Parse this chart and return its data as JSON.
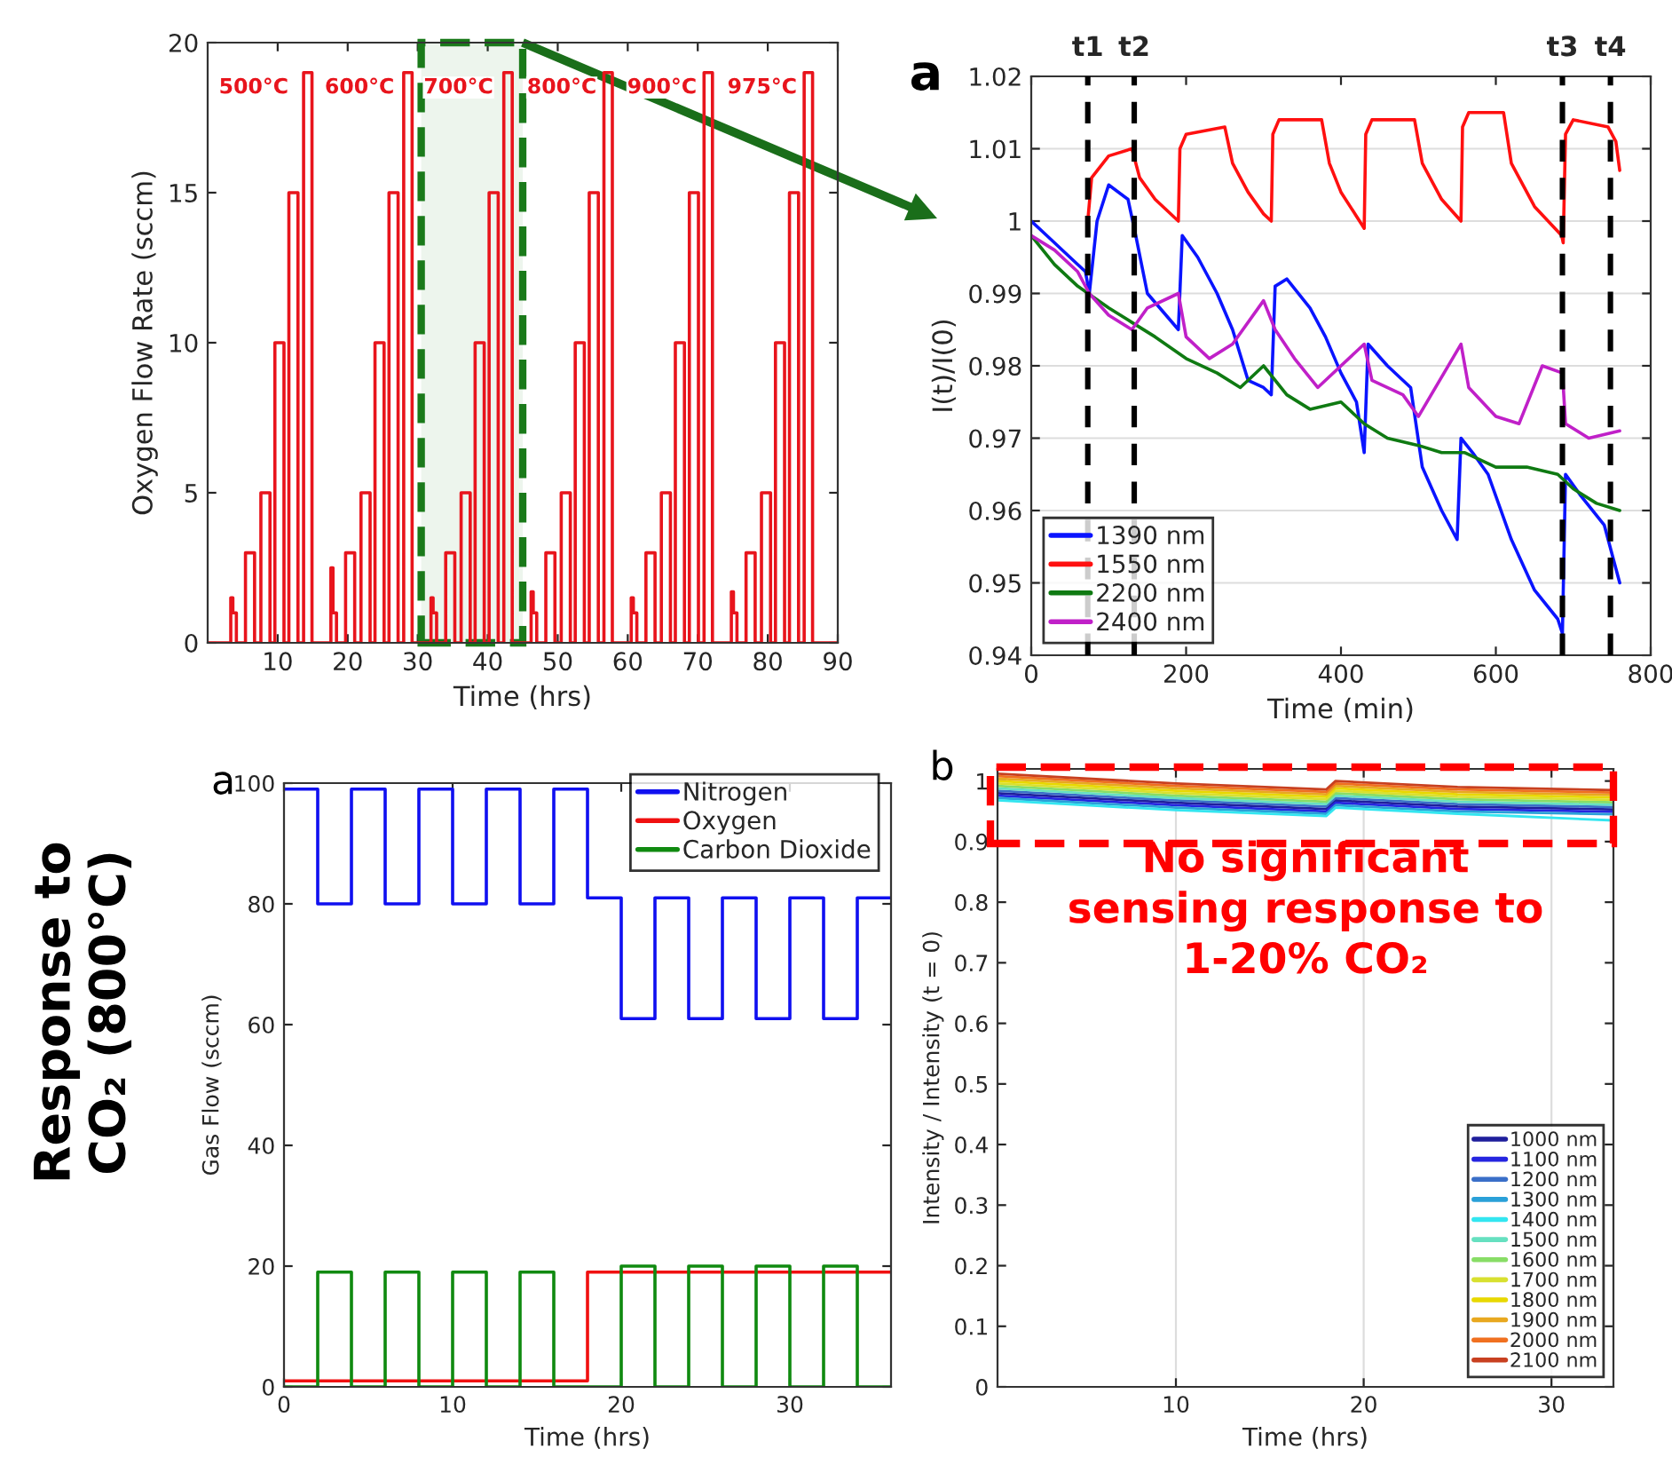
{
  "chart_data": [
    {
      "type": "step",
      "xlabel": "Time (hrs)",
      "ylabel": "Oxygen Flow Rate (sccm)",
      "xlim": [
        0,
        90
      ],
      "ylim": [
        0,
        20
      ],
      "xticks": [
        10,
        20,
        30,
        40,
        50,
        60,
        70,
        80,
        90
      ],
      "yticks": [
        0,
        5,
        10,
        15,
        20
      ],
      "grid": false,
      "legend": false,
      "series": [
        {
          "color": "#e8141c",
          "x": [
            0,
            3.3,
            3.6,
            4.1,
            5.4,
            6.7,
            7.6,
            8.9,
            9.6,
            10.9,
            11.6,
            12.9,
            13.7,
            14.9,
            17.6,
            17.9,
            18.4,
            19.7,
            21.0,
            21.9,
            23.2,
            23.9,
            25.2,
            25.9,
            27.2,
            28.0,
            29.2,
            31.9,
            32.2,
            32.7,
            34.0,
            35.3,
            36.2,
            37.5,
            38.2,
            39.5,
            40.2,
            41.5,
            42.3,
            43.5,
            46.2,
            46.5,
            47.0,
            48.3,
            49.6,
            50.5,
            51.8,
            52.5,
            53.8,
            54.5,
            55.8,
            56.6,
            57.8,
            60.5,
            60.8,
            61.3,
            62.6,
            63.9,
            64.8,
            66.1,
            66.8,
            68.1,
            68.8,
            70.1,
            70.9,
            72.1,
            74.8,
            75.1,
            75.6,
            76.9,
            78.2,
            79.1,
            80.4,
            81.1,
            82.4,
            83.1,
            84.4,
            85.2,
            86.4,
            90
          ],
          "values": [
            0,
            1.5,
            1,
            0,
            3,
            0,
            5,
            0,
            10,
            0,
            15,
            0,
            19,
            0,
            2.5,
            1,
            0,
            3,
            0,
            5,
            0,
            10,
            0,
            15,
            0,
            19,
            0,
            1.5,
            1,
            0,
            3,
            0,
            5,
            0,
            10,
            0,
            15,
            0,
            19,
            0,
            1.7,
            1,
            0,
            3,
            0,
            5,
            0,
            10,
            0,
            15,
            0,
            19,
            0,
            1.5,
            1,
            0,
            3,
            0,
            5,
            0,
            10,
            0,
            15,
            0,
            19,
            0,
            1.7,
            1,
            0,
            3,
            0,
            5,
            0,
            10,
            0,
            15,
            0,
            19,
            0,
            0
          ]
        }
      ],
      "bands": [
        {
          "axis": "x",
          "from": 30.5,
          "to": 45,
          "color": "#1a7a1a"
        }
      ],
      "annotations": [
        "500°C",
        "600°C",
        "700°C",
        "800°C",
        "900°C",
        "975°C"
      ]
    },
    {
      "type": "line",
      "xlabel": "Time (min)",
      "ylabel": "I(t)/I(0)",
      "xlim": [
        0,
        800
      ],
      "ylim": [
        0.94,
        1.02
      ],
      "xticks": [
        0,
        200,
        400,
        600,
        800
      ],
      "yticks": [
        0.94,
        0.95,
        0.96,
        0.97,
        0.98,
        0.99,
        1,
        1.01,
        1.02
      ],
      "grid": "y",
      "legend": "bottom left",
      "series": [
        {
          "name": "1390 nm",
          "color": "#0a14ff",
          "x": [
            0,
            20,
            50,
            70,
            75,
            85,
            100,
            125,
            135,
            150,
            190,
            195,
            215,
            240,
            260,
            280,
            300,
            310,
            315,
            330,
            360,
            380,
            400,
            420,
            430,
            435,
            460,
            490,
            505,
            530,
            550,
            555,
            570,
            590,
            620,
            650,
            680,
            686,
            690,
            710,
            740,
            755,
            760
          ],
          "values": [
            1.0,
            0.998,
            0.995,
            0.993,
            0.99,
            1.0,
            1.005,
            1.003,
            0.998,
            0.99,
            0.985,
            0.998,
            0.995,
            0.99,
            0.985,
            0.978,
            0.977,
            0.976,
            0.991,
            0.992,
            0.988,
            0.984,
            0.979,
            0.975,
            0.968,
            0.983,
            0.98,
            0.977,
            0.966,
            0.96,
            0.956,
            0.97,
            0.968,
            0.965,
            0.956,
            0.949,
            0.945,
            0.943,
            0.965,
            0.962,
            0.958,
            0.952,
            0.95
          ]
        },
        {
          "name": "1550 nm",
          "color": "#ff1010",
          "x": [
            73,
            78,
            100,
            130,
            140,
            160,
            190,
            192,
            200,
            250,
            260,
            280,
            300,
            310,
            312,
            320,
            375,
            385,
            400,
            430,
            432,
            440,
            495,
            505,
            530,
            555,
            557,
            565,
            610,
            620,
            650,
            685,
            687,
            690,
            700,
            745,
            755,
            760
          ],
          "values": [
            1.0,
            1.006,
            1.009,
            1.01,
            1.006,
            1.003,
            1.0,
            1.01,
            1.012,
            1.013,
            1.008,
            1.004,
            1.001,
            1.0,
            1.012,
            1.014,
            1.014,
            1.008,
            1.004,
            0.999,
            1.012,
            1.014,
            1.014,
            1.008,
            1.003,
            1.0,
            1.013,
            1.015,
            1.015,
            1.008,
            1.002,
            0.998,
            0.997,
            1.012,
            1.014,
            1.013,
            1.011,
            1.007
          ]
        },
        {
          "name": "2200 nm",
          "color": "#0f7a12",
          "x": [
            0,
            30,
            60,
            100,
            130,
            160,
            200,
            240,
            270,
            300,
            330,
            360,
            400,
            430,
            460,
            500,
            530,
            560,
            600,
            640,
            680,
            700,
            730,
            760
          ],
          "values": [
            0.998,
            0.994,
            0.991,
            0.988,
            0.986,
            0.984,
            0.981,
            0.979,
            0.977,
            0.98,
            0.976,
            0.974,
            0.975,
            0.972,
            0.97,
            0.969,
            0.968,
            0.968,
            0.966,
            0.966,
            0.965,
            0.963,
            0.961,
            0.96
          ]
        },
        {
          "name": "2400 nm",
          "color": "#c020c8",
          "x": [
            0,
            30,
            60,
            75,
            100,
            130,
            150,
            190,
            200,
            230,
            260,
            300,
            315,
            340,
            370,
            430,
            440,
            480,
            500,
            555,
            565,
            600,
            630,
            660,
            686,
            690,
            720,
            760
          ],
          "values": [
            0.998,
            0.996,
            0.993,
            0.99,
            0.987,
            0.985,
            0.988,
            0.99,
            0.984,
            0.981,
            0.983,
            0.989,
            0.985,
            0.981,
            0.977,
            0.983,
            0.978,
            0.976,
            0.973,
            0.983,
            0.977,
            0.973,
            0.972,
            0.98,
            0.979,
            0.972,
            0.97,
            0.971
          ]
        }
      ],
      "ref_lines": [
        {
          "axis": "x",
          "value": 73,
          "label": "t1",
          "color": "#000000",
          "line_style": "dashed"
        },
        {
          "axis": "x",
          "value": 133,
          "label": "t2",
          "color": "#000000",
          "line_style": "dashed"
        },
        {
          "axis": "x",
          "value": 686,
          "label": "t3",
          "color": "#000000",
          "line_style": "dashed"
        },
        {
          "axis": "x",
          "value": 748,
          "label": "t4",
          "color": "#000000",
          "line_style": "dashed"
        }
      ],
      "annotations": [
        "a"
      ]
    },
    {
      "type": "step",
      "xlabel": "Time (hrs)",
      "ylabel": "Gas Flow (sccm)",
      "xlim": [
        0,
        36
      ],
      "ylim": [
        0,
        100
      ],
      "xticks": [
        0,
        10,
        20,
        30
      ],
      "yticks": [
        0,
        20,
        40,
        60,
        80,
        100
      ],
      "grid": false,
      "legend": "top right",
      "series": [
        {
          "name": "Nitrogen",
          "color": "#1010f0",
          "x": [
            0,
            2,
            4,
            6,
            8,
            10,
            12,
            14,
            16,
            18,
            20,
            22,
            24,
            26,
            28,
            30,
            32,
            34,
            36
          ],
          "values": [
            99,
            80,
            99,
            80,
            99,
            80,
            99,
            80,
            99,
            81,
            61,
            81,
            61,
            81,
            61,
            81,
            61,
            81,
            81
          ]
        },
        {
          "name": "Oxygen",
          "color": "#f01010",
          "x": [
            0,
            18,
            36
          ],
          "values": [
            1,
            19,
            19
          ]
        },
        {
          "name": "Carbon Dioxide",
          "color": "#108a10",
          "x": [
            0,
            2,
            4,
            6,
            8,
            10,
            12,
            14,
            16,
            18,
            20,
            22,
            24,
            26,
            28,
            30,
            32,
            34,
            36
          ],
          "values": [
            0,
            19,
            0,
            19,
            0,
            19,
            0,
            19,
            0,
            0,
            20,
            0,
            20,
            0,
            20,
            0,
            20,
            0,
            0
          ]
        }
      ],
      "annotations": [
        "a",
        "Response to\nCO₂ (800°C)"
      ]
    },
    {
      "type": "line",
      "xlabel": "Time (hrs)",
      "ylabel": "Intensity / Intensity (t = 0)",
      "xlim": [
        0.5,
        33.3
      ],
      "ylim": [
        0,
        1.02
      ],
      "xticks": [
        10,
        20,
        30
      ],
      "yticks": [
        0,
        0.1,
        0.2,
        0.3,
        0.4,
        0.5,
        0.6,
        0.7,
        0.8,
        0.9,
        1
      ],
      "grid": "x",
      "legend": "bottom right",
      "series": [
        {
          "name": "1000 nm",
          "color": "#1f1f9c",
          "x": [
            0.5,
            10,
            18,
            18.5,
            25,
            33.3
          ],
          "values": [
            0.98,
            0.964,
            0.954,
            0.968,
            0.958,
            0.953
          ]
        },
        {
          "name": "1100 nm",
          "color": "#2525e0",
          "x": [
            0.5,
            10,
            18,
            18.5,
            25,
            33.3
          ],
          "values": [
            0.976,
            0.96,
            0.95,
            0.964,
            0.954,
            0.949
          ]
        },
        {
          "name": "1200 nm",
          "color": "#3a6fc8",
          "x": [
            0.5,
            10,
            18,
            18.5,
            25,
            33.3
          ],
          "values": [
            0.984,
            0.968,
            0.958,
            0.972,
            0.962,
            0.957
          ]
        },
        {
          "name": "1300 nm",
          "color": "#2aa0d8",
          "x": [
            0.5,
            10,
            18,
            18.5,
            25,
            33.3
          ],
          "values": [
            0.972,
            0.956,
            0.946,
            0.96,
            0.95,
            0.945
          ]
        },
        {
          "name": "1400 nm",
          "color": "#33e6f0",
          "x": [
            0.5,
            10,
            18,
            18.5,
            25,
            33.3
          ],
          "values": [
            0.968,
            0.952,
            0.942,
            0.956,
            0.946,
            0.935
          ]
        },
        {
          "name": "1500 nm",
          "color": "#66e0c0",
          "x": [
            0.5,
            10,
            18,
            18.5,
            25,
            33.3
          ],
          "values": [
            0.988,
            0.972,
            0.962,
            0.976,
            0.966,
            0.961
          ]
        },
        {
          "name": "1600 nm",
          "color": "#88dd66",
          "x": [
            0.5,
            10,
            18,
            18.5,
            25,
            33.3
          ],
          "values": [
            0.992,
            0.976,
            0.966,
            0.98,
            0.97,
            0.965
          ]
        },
        {
          "name": "1700 nm",
          "color": "#d8e030",
          "x": [
            0.5,
            10,
            18,
            18.5,
            25,
            33.3
          ],
          "values": [
            0.996,
            0.98,
            0.97,
            0.984,
            0.974,
            0.969
          ]
        },
        {
          "name": "1800 nm",
          "color": "#e8d800",
          "x": [
            0.5,
            10,
            18,
            18.5,
            25,
            33.3
          ],
          "values": [
            1.0,
            0.984,
            0.974,
            0.988,
            0.978,
            0.973
          ]
        },
        {
          "name": "1900 nm",
          "color": "#e8a820",
          "x": [
            0.5,
            10,
            18,
            18.5,
            25,
            33.3
          ],
          "values": [
            1.004,
            0.988,
            0.978,
            0.992,
            0.982,
            0.977
          ]
        },
        {
          "name": "2000 nm",
          "color": "#f07020",
          "x": [
            0.5,
            10,
            18,
            18.5,
            25,
            33.3
          ],
          "values": [
            1.008,
            0.992,
            0.982,
            0.996,
            0.986,
            0.981
          ]
        },
        {
          "name": "2100 nm",
          "color": "#c84020",
          "x": [
            0.5,
            10,
            18,
            18.5,
            25,
            33.3
          ],
          "values": [
            1.012,
            0.996,
            0.986,
            1.0,
            0.99,
            0.985
          ]
        }
      ],
      "annotations": [
        "b",
        "No significant\nsensing response to\n1-20% CO₂"
      ]
    }
  ]
}
